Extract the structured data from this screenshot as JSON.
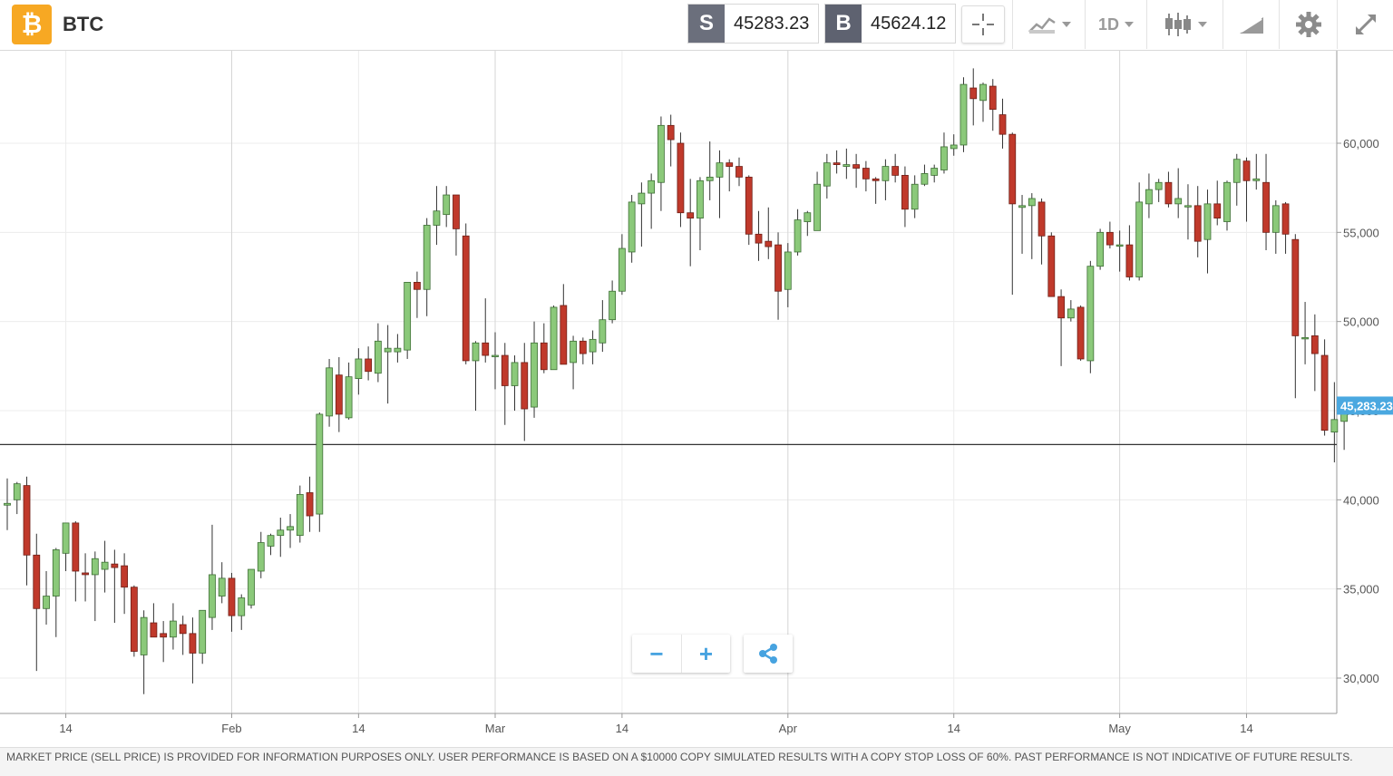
{
  "header": {
    "logo_glyph": "₿",
    "logo_color": "#f7a823",
    "symbol": "BTC",
    "sell": {
      "label": "S",
      "value": "45283.23",
      "color": "#6b6f7c"
    },
    "buy": {
      "label": "B",
      "value": "45624.12",
      "color": "#5e6270"
    },
    "tools": [
      {
        "name": "crosshair-tool",
        "icon": "crosshair-icon"
      },
      {
        "name": "chart-type-dropdown",
        "icon": "line-chart-icon"
      },
      {
        "name": "timeframe-dropdown",
        "label": "1D"
      },
      {
        "name": "candle-style-dropdown",
        "icon": "candlestick-icon"
      },
      {
        "name": "drawing-tool",
        "icon": "draw-icon"
      },
      {
        "name": "settings-button",
        "icon": "gear-icon"
      },
      {
        "name": "fullscreen-button",
        "icon": "expand-icon"
      }
    ]
  },
  "chart_data": {
    "type": "candlestick",
    "x_tick_labels": [
      "14",
      "Feb",
      "14",
      "Mar",
      "14",
      "Apr",
      "14",
      "May",
      "14"
    ],
    "y_tick_labels": [
      "30,000",
      "35,000",
      "40,000",
      "45,000",
      "50,000",
      "55,000",
      "60,000"
    ],
    "ylim": [
      28500,
      64500
    ],
    "last_price": 45283.23,
    "last_price_label": "45,283.23",
    "horizontal_line": 43100,
    "grid": true,
    "up_color": "#8bc97a",
    "down_color": "#c0392b",
    "price_tag_color": "#4aa8e0",
    "candles": [
      {
        "o": 39700,
        "h": 41200,
        "l": 38300,
        "c": 39800
      },
      {
        "o": 40000,
        "h": 41000,
        "l": 39200,
        "c": 40900
      },
      {
        "o": 40800,
        "h": 41300,
        "l": 35200,
        "c": 36900
      },
      {
        "o": 36900,
        "h": 38100,
        "l": 30400,
        "c": 33900
      },
      {
        "o": 33900,
        "h": 36000,
        "l": 33000,
        "c": 34600
      },
      {
        "o": 34600,
        "h": 37300,
        "l": 32300,
        "c": 37200
      },
      {
        "o": 37000,
        "h": 38600,
        "l": 36000,
        "c": 38700
      },
      {
        "o": 38700,
        "h": 38800,
        "l": 34300,
        "c": 36000
      },
      {
        "o": 35900,
        "h": 37000,
        "l": 34300,
        "c": 35800
      },
      {
        "o": 35800,
        "h": 37100,
        "l": 33200,
        "c": 36700
      },
      {
        "o": 36100,
        "h": 37700,
        "l": 34800,
        "c": 36500
      },
      {
        "o": 36400,
        "h": 37200,
        "l": 33100,
        "c": 36200
      },
      {
        "o": 36300,
        "h": 37000,
        "l": 33600,
        "c": 35100
      },
      {
        "o": 35100,
        "h": 35200,
        "l": 31200,
        "c": 31500
      },
      {
        "o": 31300,
        "h": 33800,
        "l": 29100,
        "c": 33400
      },
      {
        "o": 33100,
        "h": 34200,
        "l": 32400,
        "c": 32300
      },
      {
        "o": 32500,
        "h": 33200,
        "l": 30900,
        "c": 32300
      },
      {
        "o": 32300,
        "h": 34200,
        "l": 31600,
        "c": 33200
      },
      {
        "o": 33000,
        "h": 33500,
        "l": 31300,
        "c": 32500
      },
      {
        "o": 32500,
        "h": 33400,
        "l": 29700,
        "c": 31400
      },
      {
        "o": 31400,
        "h": 33800,
        "l": 30800,
        "c": 33800
      },
      {
        "o": 33400,
        "h": 38600,
        "l": 32700,
        "c": 35800
      },
      {
        "o": 34600,
        "h": 36500,
        "l": 34200,
        "c": 35600
      },
      {
        "o": 35600,
        "h": 35900,
        "l": 32600,
        "c": 33500
      },
      {
        "o": 33500,
        "h": 34700,
        "l": 32700,
        "c": 34500
      },
      {
        "o": 34100,
        "h": 36000,
        "l": 33900,
        "c": 36100
      },
      {
        "o": 36000,
        "h": 38200,
        "l": 35600,
        "c": 37600
      },
      {
        "o": 37400,
        "h": 38100,
        "l": 36900,
        "c": 38000
      },
      {
        "o": 38000,
        "h": 39000,
        "l": 36800,
        "c": 38300
      },
      {
        "o": 38300,
        "h": 39200,
        "l": 37300,
        "c": 38500
      },
      {
        "o": 38000,
        "h": 40800,
        "l": 37600,
        "c": 40300
      },
      {
        "o": 40400,
        "h": 41300,
        "l": 38200,
        "c": 39100
      },
      {
        "o": 39200,
        "h": 44900,
        "l": 38200,
        "c": 44800
      },
      {
        "o": 44700,
        "h": 47900,
        "l": 44100,
        "c": 47400
      },
      {
        "o": 47000,
        "h": 48000,
        "l": 43800,
        "c": 44800
      },
      {
        "o": 44600,
        "h": 47700,
        "l": 44500,
        "c": 46900
      },
      {
        "o": 46800,
        "h": 48500,
        "l": 45900,
        "c": 47900
      },
      {
        "o": 47900,
        "h": 48600,
        "l": 46700,
        "c": 47200
      },
      {
        "o": 47100,
        "h": 49900,
        "l": 46600,
        "c": 48900
      },
      {
        "o": 48300,
        "h": 49800,
        "l": 45400,
        "c": 48500
      },
      {
        "o": 48300,
        "h": 49300,
        "l": 47700,
        "c": 48500
      },
      {
        "o": 48400,
        "h": 52200,
        "l": 47900,
        "c": 52200
      },
      {
        "o": 52200,
        "h": 52800,
        "l": 50200,
        "c": 51800
      },
      {
        "o": 51800,
        "h": 55800,
        "l": 50300,
        "c": 55400
      },
      {
        "o": 55400,
        "h": 57600,
        "l": 54300,
        "c": 56200
      },
      {
        "o": 56000,
        "h": 57600,
        "l": 55300,
        "c": 57100
      },
      {
        "o": 57100,
        "h": 57100,
        "l": 53700,
        "c": 55200
      },
      {
        "o": 54800,
        "h": 55500,
        "l": 47600,
        "c": 47800
      },
      {
        "o": 47800,
        "h": 48900,
        "l": 45000,
        "c": 48800
      },
      {
        "o": 48800,
        "h": 51300,
        "l": 47700,
        "c": 48100
      },
      {
        "o": 48100,
        "h": 49400,
        "l": 46200,
        "c": 48100
      },
      {
        "o": 48100,
        "h": 48800,
        "l": 44200,
        "c": 46400
      },
      {
        "o": 46400,
        "h": 48100,
        "l": 45000,
        "c": 47700
      },
      {
        "o": 47700,
        "h": 48800,
        "l": 43300,
        "c": 45100
      },
      {
        "o": 45200,
        "h": 50000,
        "l": 44600,
        "c": 48800
      },
      {
        "o": 48800,
        "h": 49900,
        "l": 47100,
        "c": 47300
      },
      {
        "o": 47300,
        "h": 50900,
        "l": 47300,
        "c": 50800
      },
      {
        "o": 50900,
        "h": 52100,
        "l": 47800,
        "c": 47600
      },
      {
        "o": 47700,
        "h": 49200,
        "l": 46200,
        "c": 48900
      },
      {
        "o": 48900,
        "h": 49100,
        "l": 47600,
        "c": 48200
      },
      {
        "o": 48300,
        "h": 49500,
        "l": 47600,
        "c": 49000
      },
      {
        "o": 48800,
        "h": 51200,
        "l": 48300,
        "c": 50100
      },
      {
        "o": 50100,
        "h": 52300,
        "l": 49900,
        "c": 51700
      },
      {
        "o": 51700,
        "h": 54900,
        "l": 51500,
        "c": 54100
      },
      {
        "o": 53900,
        "h": 57100,
        "l": 53300,
        "c": 56700
      },
      {
        "o": 56600,
        "h": 57800,
        "l": 54200,
        "c": 57200
      },
      {
        "o": 57200,
        "h": 58300,
        "l": 55200,
        "c": 57900
      },
      {
        "o": 57800,
        "h": 61500,
        "l": 56200,
        "c": 61000
      },
      {
        "o": 61000,
        "h": 61600,
        "l": 58700,
        "c": 60200
      },
      {
        "o": 60000,
        "h": 60600,
        "l": 55300,
        "c": 56100
      },
      {
        "o": 56100,
        "h": 58000,
        "l": 53100,
        "c": 55800
      },
      {
        "o": 55800,
        "h": 58100,
        "l": 54000,
        "c": 57900
      },
      {
        "o": 57900,
        "h": 60100,
        "l": 56800,
        "c": 58100
      },
      {
        "o": 58100,
        "h": 59600,
        "l": 55800,
        "c": 58900
      },
      {
        "o": 58900,
        "h": 59100,
        "l": 57300,
        "c": 58700
      },
      {
        "o": 58700,
        "h": 59200,
        "l": 57600,
        "c": 58100
      },
      {
        "o": 58100,
        "h": 58200,
        "l": 54300,
        "c": 54900
      },
      {
        "o": 54900,
        "h": 56200,
        "l": 53400,
        "c": 54400
      },
      {
        "o": 54500,
        "h": 56400,
        "l": 53500,
        "c": 54200
      },
      {
        "o": 54300,
        "h": 55000,
        "l": 50100,
        "c": 51700
      },
      {
        "o": 51800,
        "h": 54400,
        "l": 50800,
        "c": 53900
      },
      {
        "o": 53900,
        "h": 56300,
        "l": 53700,
        "c": 55700
      },
      {
        "o": 55600,
        "h": 56200,
        "l": 54800,
        "c": 56100
      },
      {
        "o": 55100,
        "h": 58400,
        "l": 55300,
        "c": 57700
      },
      {
        "o": 57600,
        "h": 59400,
        "l": 56900,
        "c": 58900
      },
      {
        "o": 58900,
        "h": 59600,
        "l": 58300,
        "c": 58800
      },
      {
        "o": 58700,
        "h": 59700,
        "l": 58000,
        "c": 58800
      },
      {
        "o": 58800,
        "h": 59400,
        "l": 57500,
        "c": 58600
      },
      {
        "o": 58600,
        "h": 59000,
        "l": 57300,
        "c": 58000
      },
      {
        "o": 58000,
        "h": 58100,
        "l": 56600,
        "c": 57900
      },
      {
        "o": 57900,
        "h": 59100,
        "l": 56800,
        "c": 58700
      },
      {
        "o": 58700,
        "h": 59400,
        "l": 57800,
        "c": 58200
      },
      {
        "o": 58200,
        "h": 58700,
        "l": 55300,
        "c": 56300
      },
      {
        "o": 56300,
        "h": 58200,
        "l": 55800,
        "c": 57700
      },
      {
        "o": 57700,
        "h": 58800,
        "l": 57600,
        "c": 58300
      },
      {
        "o": 58200,
        "h": 58800,
        "l": 57800,
        "c": 58600
      },
      {
        "o": 58500,
        "h": 60600,
        "l": 58300,
        "c": 59800
      },
      {
        "o": 59700,
        "h": 60500,
        "l": 59300,
        "c": 59900
      },
      {
        "o": 59900,
        "h": 63700,
        "l": 59500,
        "c": 63300
      },
      {
        "o": 63100,
        "h": 64200,
        "l": 61000,
        "c": 62500
      },
      {
        "o": 62400,
        "h": 63400,
        "l": 61200,
        "c": 63300
      },
      {
        "o": 63200,
        "h": 63600,
        "l": 60700,
        "c": 61900
      },
      {
        "o": 61600,
        "h": 62500,
        "l": 59700,
        "c": 60500
      },
      {
        "o": 60500,
        "h": 60600,
        "l": 51500,
        "c": 56600
      },
      {
        "o": 56400,
        "h": 57100,
        "l": 53800,
        "c": 56500
      },
      {
        "o": 56500,
        "h": 57200,
        "l": 53500,
        "c": 56900
      },
      {
        "o": 56700,
        "h": 56900,
        "l": 53200,
        "c": 54800
      },
      {
        "o": 54800,
        "h": 55000,
        "l": 51400,
        "c": 51400
      },
      {
        "o": 51400,
        "h": 51800,
        "l": 47500,
        "c": 50200
      },
      {
        "o": 50200,
        "h": 51200,
        "l": 50000,
        "c": 50700
      },
      {
        "o": 50800,
        "h": 50900,
        "l": 47800,
        "c": 47900
      },
      {
        "o": 47800,
        "h": 53400,
        "l": 47100,
        "c": 53100
      },
      {
        "o": 53100,
        "h": 55200,
        "l": 52900,
        "c": 55000
      },
      {
        "o": 55000,
        "h": 55600,
        "l": 54100,
        "c": 54300
      },
      {
        "o": 54300,
        "h": 55100,
        "l": 52800,
        "c": 54300
      },
      {
        "o": 54300,
        "h": 55400,
        "l": 52300,
        "c": 52500
      },
      {
        "o": 52500,
        "h": 57800,
        "l": 52300,
        "c": 56700
      },
      {
        "o": 56600,
        "h": 58300,
        "l": 55800,
        "c": 57400
      },
      {
        "o": 57400,
        "h": 58000,
        "l": 56700,
        "c": 57800
      },
      {
        "o": 57800,
        "h": 58400,
        "l": 56400,
        "c": 56600
      },
      {
        "o": 56600,
        "h": 58600,
        "l": 55800,
        "c": 56900
      },
      {
        "o": 56500,
        "h": 57700,
        "l": 54600,
        "c": 56500
      },
      {
        "o": 56500,
        "h": 57600,
        "l": 53600,
        "c": 54500
      },
      {
        "o": 54600,
        "h": 57400,
        "l": 52700,
        "c": 56600
      },
      {
        "o": 56600,
        "h": 57900,
        "l": 55400,
        "c": 55800
      },
      {
        "o": 55600,
        "h": 57900,
        "l": 55100,
        "c": 57800
      },
      {
        "o": 57800,
        "h": 59400,
        "l": 56500,
        "c": 59100
      },
      {
        "o": 59000,
        "h": 59200,
        "l": 55600,
        "c": 57900
      },
      {
        "o": 57900,
        "h": 59400,
        "l": 57400,
        "c": 58000
      },
      {
        "o": 57800,
        "h": 59400,
        "l": 54000,
        "c": 55000
      },
      {
        "o": 55000,
        "h": 56800,
        "l": 53800,
        "c": 56500
      },
      {
        "o": 56600,
        "h": 56700,
        "l": 53800,
        "c": 54900
      },
      {
        "o": 54600,
        "h": 54900,
        "l": 45700,
        "c": 49200
      },
      {
        "o": 49100,
        "h": 51100,
        "l": 47600,
        "c": 49100
      },
      {
        "o": 49200,
        "h": 50400,
        "l": 46100,
        "c": 48200
      },
      {
        "o": 48100,
        "h": 49000,
        "l": 43600,
        "c": 43900
      },
      {
        "o": 43800,
        "h": 46600,
        "l": 42100,
        "c": 44500
      },
      {
        "o": 44400,
        "h": 45300,
        "l": 42800,
        "c": 45200
      }
    ]
  },
  "zoom": {
    "out_label": "−",
    "in_label": "+"
  },
  "disclaimer": "MARKET PRICE (SELL PRICE) IS PROVIDED FOR INFORMATION PURPOSES ONLY. USER PERFORMANCE IS BASED ON A $10000 COPY SIMULATED RESULTS WITH A COPY STOP LOSS OF 60%. PAST PERFORMANCE IS NOT INDICATIVE OF FUTURE RESULTS."
}
